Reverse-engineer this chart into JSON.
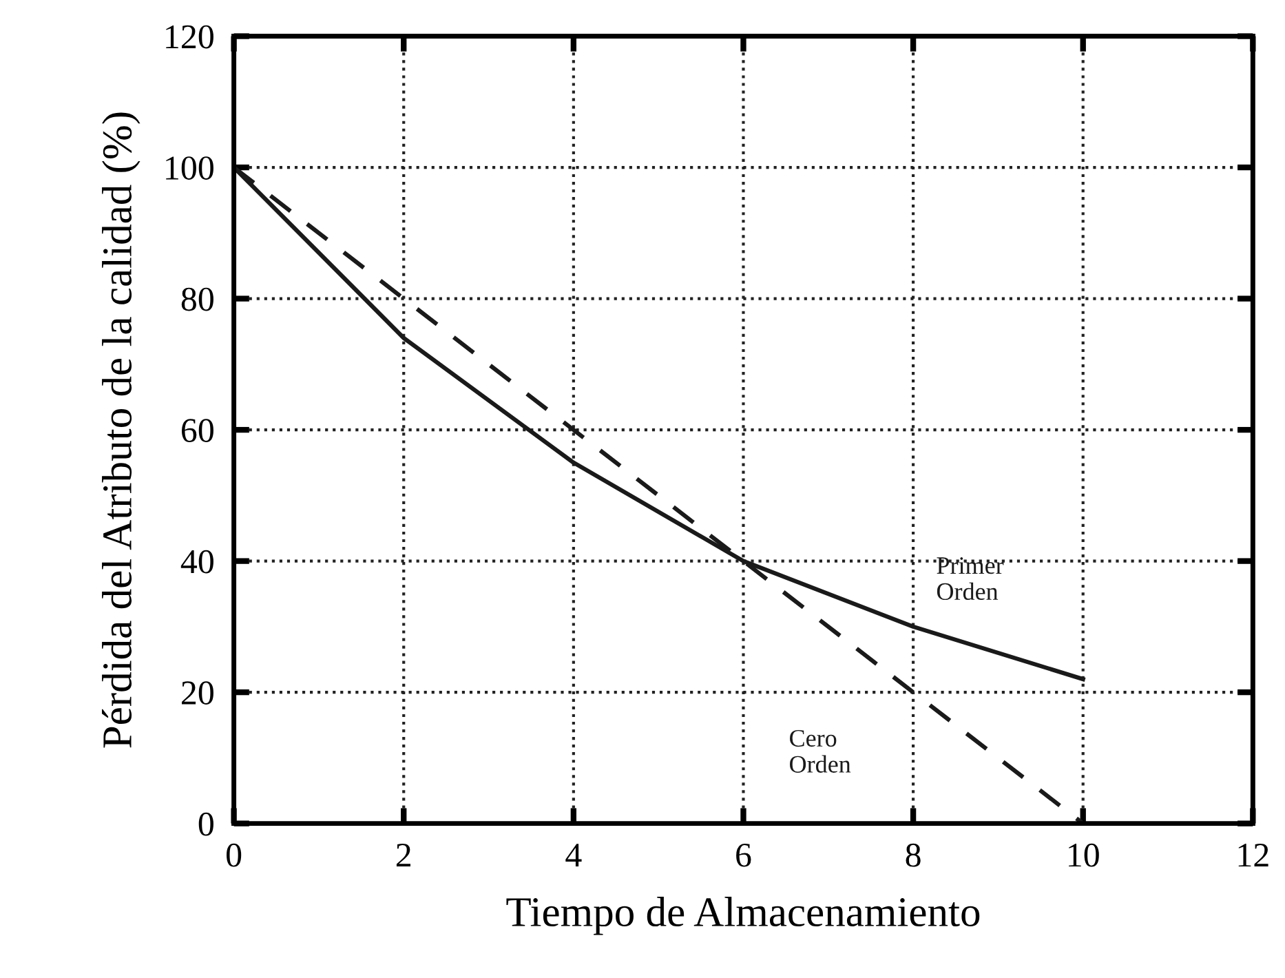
{
  "chart_data": {
    "type": "line",
    "xlabel": "Tiempo de Almacenamiento",
    "ylabel": "Pérdida del Atributo de la calidad (%)",
    "x": [
      0,
      2,
      4,
      6,
      8,
      10
    ],
    "series": [
      {
        "name": "Primer\nOrden",
        "color": "#1a1a1a",
        "line_style": "solid",
        "values": [
          100,
          74,
          55,
          40,
          30,
          22
        ]
      },
      {
        "name": "Cero\nOrden",
        "color": "#1a1a1a",
        "line_style": "dashed",
        "values": [
          100,
          80,
          60,
          40,
          20,
          0
        ]
      }
    ],
    "xlim": [
      0,
      12
    ],
    "xticks": [
      0,
      2,
      4,
      6,
      8,
      10,
      12
    ],
    "ylim": [
      0,
      120
    ],
    "yticks": [
      0,
      20,
      40,
      60,
      80,
      100,
      120
    ],
    "grid": true,
    "legend": false,
    "marker": "none"
  }
}
